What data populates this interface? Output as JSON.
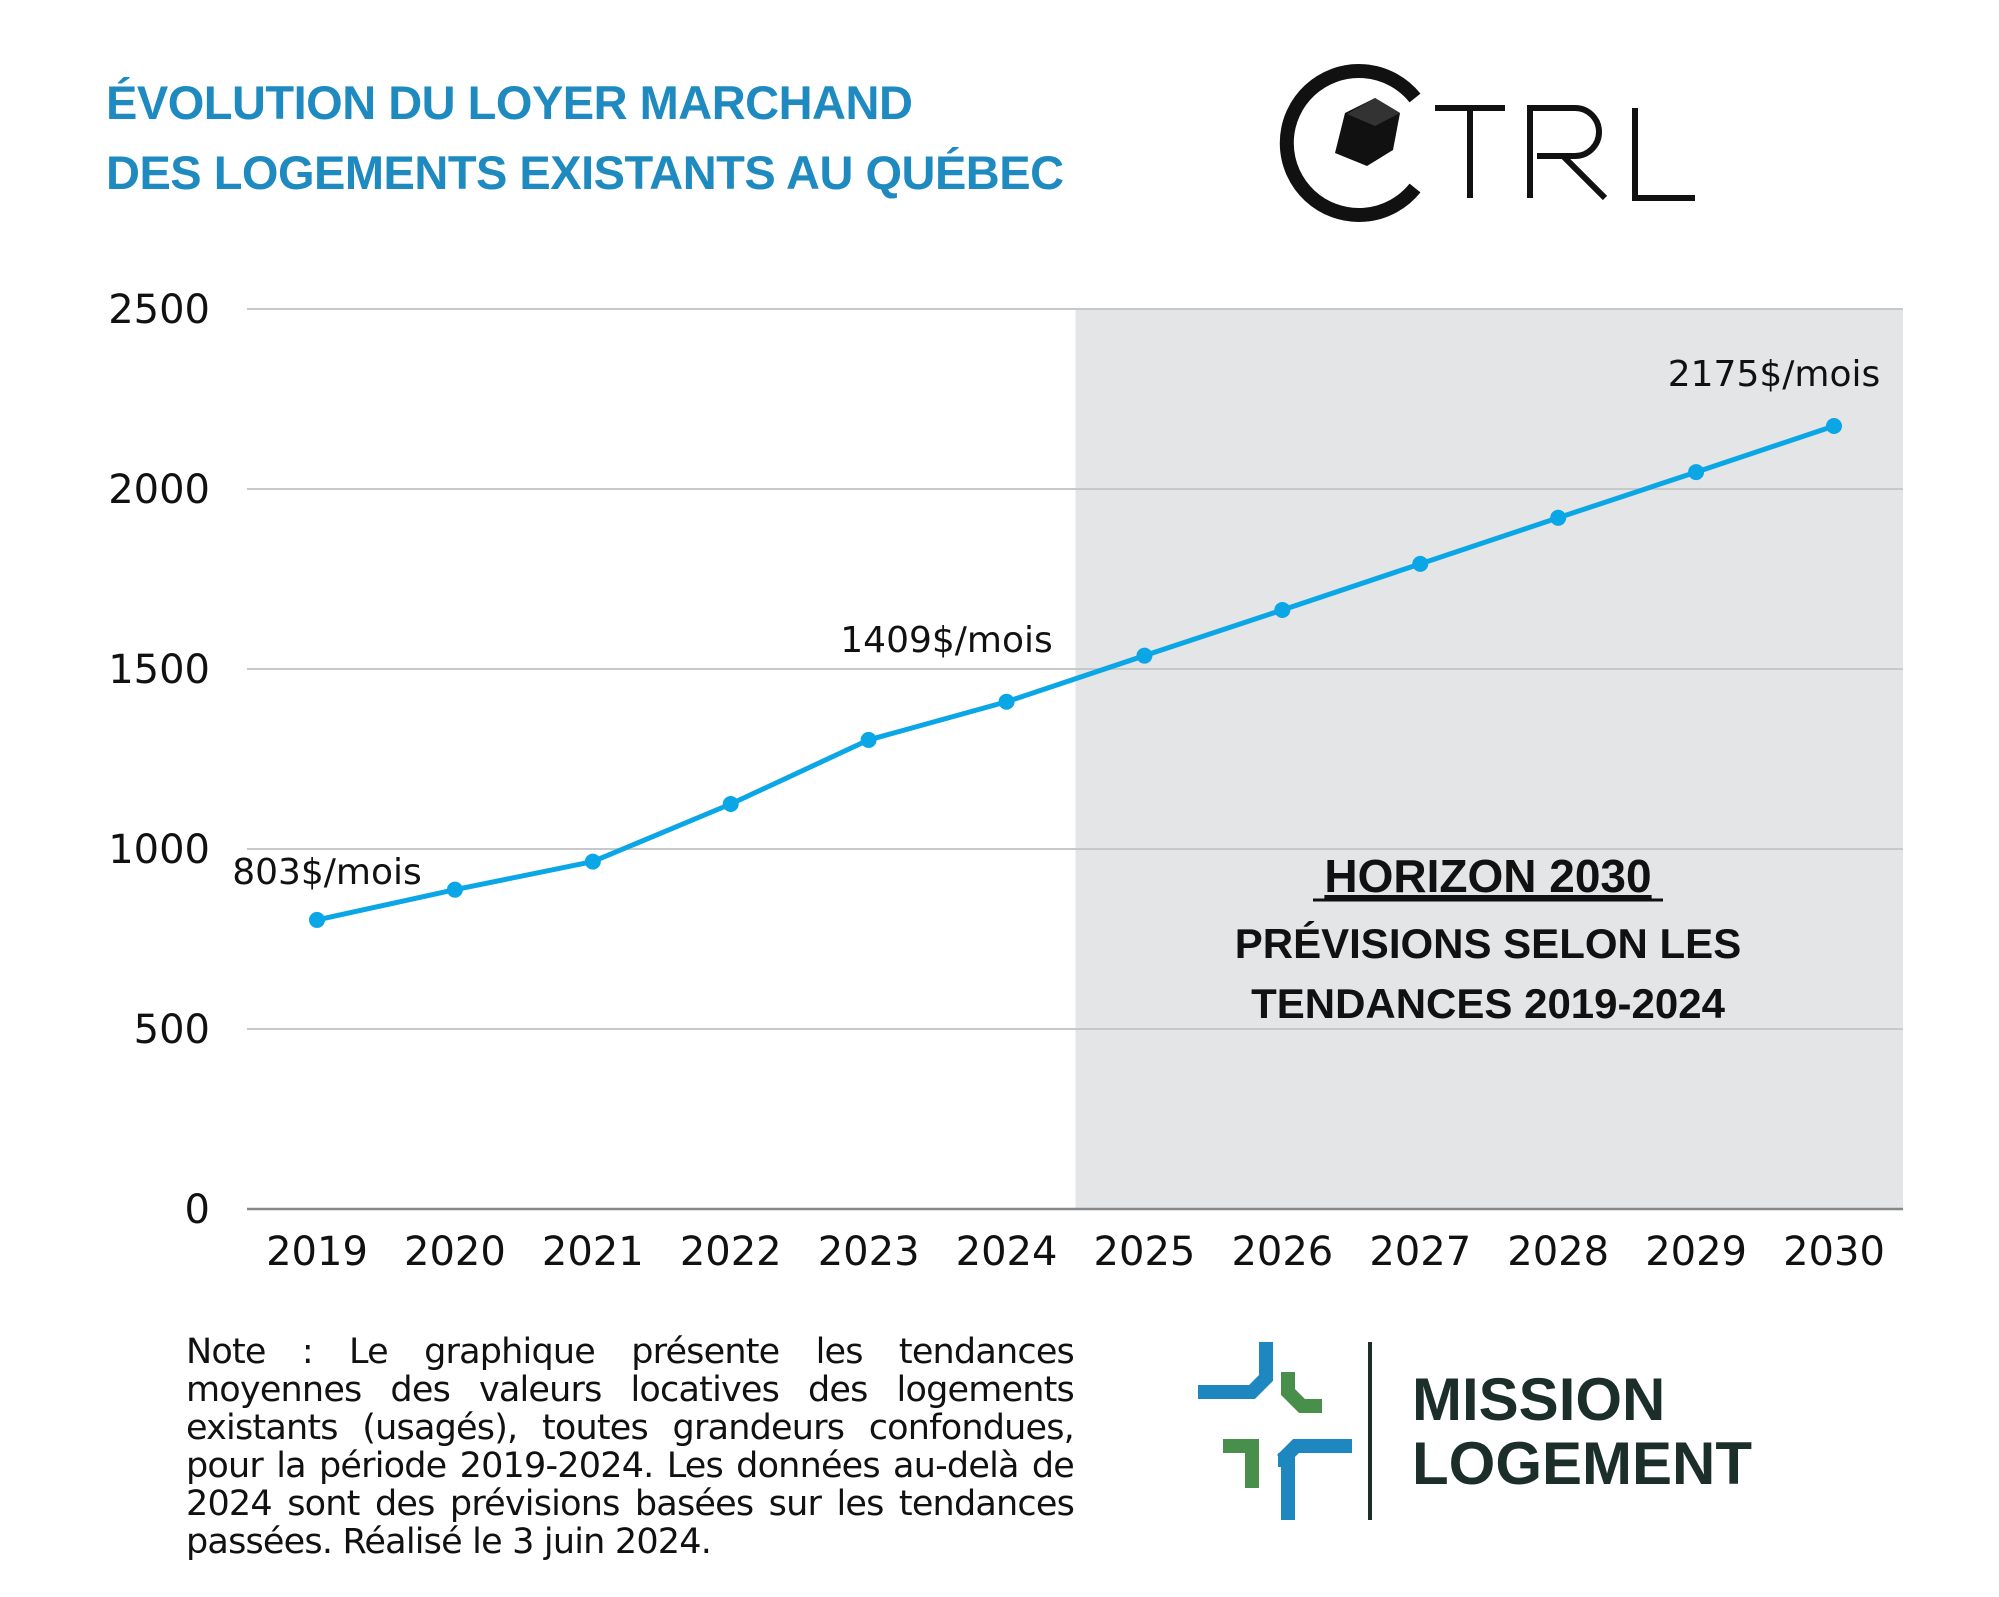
{
  "title": {
    "line1": "ÉVOLUTION DU LOYER MARCHAND",
    "line2": "DES LOGEMENTS EXISTANTS AU QUÉBEC"
  },
  "logos": {
    "ctrl": "CTRL",
    "mission_line1": "MISSION",
    "mission_line2": "LOGEMENT"
  },
  "colors": {
    "line": "#0aa6e6",
    "title": "#1f8ac0",
    "forecast_band": "#e4e5e7",
    "grid": "#c8c8c8"
  },
  "chart_data": {
    "type": "line",
    "title": "ÉVOLUTION DU LOYER MARCHAND DES LOGEMENTS EXISTANTS AU QUÉBEC",
    "xlabel": "",
    "ylabel": "",
    "categories": [
      "2019",
      "2020",
      "2021",
      "2022",
      "2023",
      "2024",
      "2025",
      "2026",
      "2027",
      "2028",
      "2029",
      "2030"
    ],
    "values": [
      803,
      887,
      965,
      1125,
      1303,
      1409,
      1537,
      1664,
      1792,
      1920,
      2047,
      2175
    ],
    "ylim": [
      0,
      2500
    ],
    "yticks": [
      "0",
      "500",
      "1000",
      "1500",
      "2000",
      "2500"
    ],
    "grid": true,
    "forecast_region": {
      "from": "2025",
      "to": "2030",
      "heading": "HORIZON 2030",
      "line1": "PRÉVISIONS SELON LES",
      "line2": "TENDANCES 2019-2024"
    },
    "data_labels": [
      {
        "category": "2019",
        "text": "803$/mois"
      },
      {
        "category": "2024",
        "text": "1409$/mois"
      },
      {
        "category": "2030",
        "text": "2175$/mois"
      }
    ]
  },
  "note": "Note : Le graphique présente les tendances moyennes des valeurs locatives des logements existants (usagés), toutes grandeurs confondues, pour la période 2019-2024. Les données au-delà de 2024 sont des prévisions basées sur les tendances passées. Réalisé le 3 juin 2024."
}
